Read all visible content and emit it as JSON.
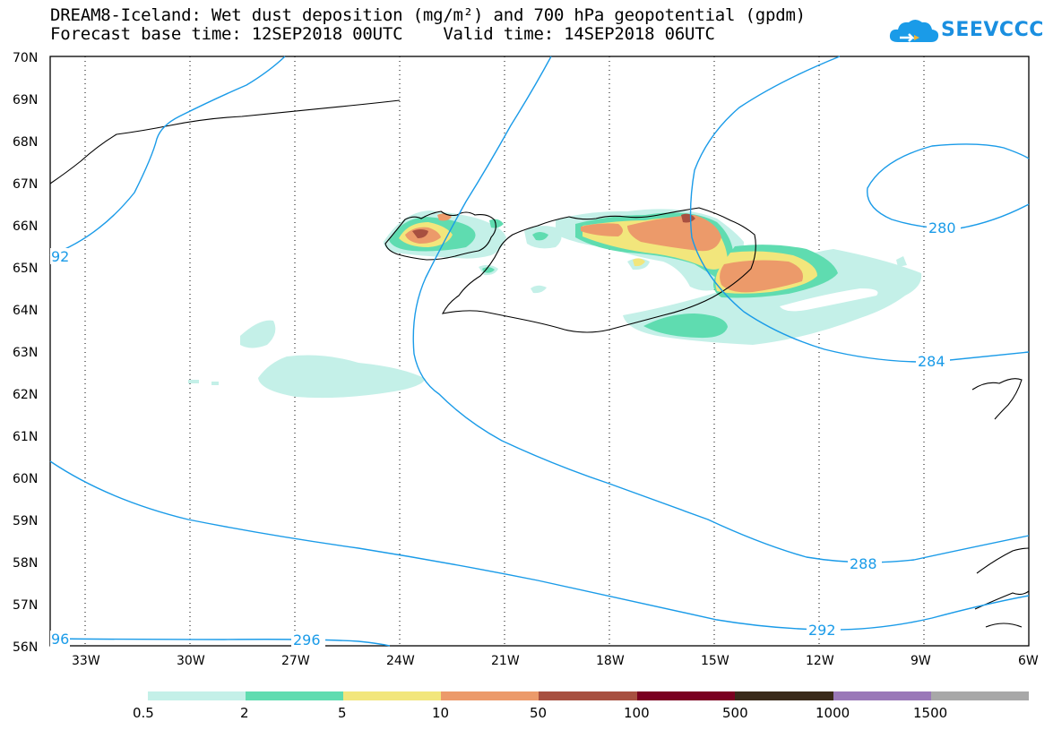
{
  "header": {
    "title_line1": "DREAM8-Iceland: Wet dust deposition (mg/m²) and 700 hPa geopotential (gpdm)",
    "title_line2": "Forecast base time: 12SEP2018 00UTC    Valid time: 14SEP2018 06UTC",
    "logo_text": "SEEVCCC"
  },
  "map": {
    "lat_labels": [
      "70N",
      "69N",
      "68N",
      "67N",
      "66N",
      "65N",
      "64N",
      "63N",
      "62N",
      "61N",
      "60N",
      "59N",
      "58N",
      "57N",
      "56N"
    ],
    "lon_labels": [
      "33W",
      "30W",
      "27W",
      "24W",
      "21W",
      "18W",
      "15W",
      "12W",
      "9W",
      "6W"
    ],
    "contour_labels": [
      "280",
      "284",
      "288",
      "292",
      "296",
      "92",
      "96"
    ],
    "contour_color": "#1a9be8"
  },
  "legend": {
    "boundaries": [
      "0.5",
      "2",
      "5",
      "10",
      "50",
      "100",
      "500",
      "1000",
      "1500"
    ],
    "colors": [
      "#c4f0e8",
      "#5fdcb0",
      "#f2e67c",
      "#ec9a6a",
      "#a85040",
      "#7a0020",
      "#3a2a1a",
      "#9a78b8",
      "#a8a8a8"
    ]
  }
}
